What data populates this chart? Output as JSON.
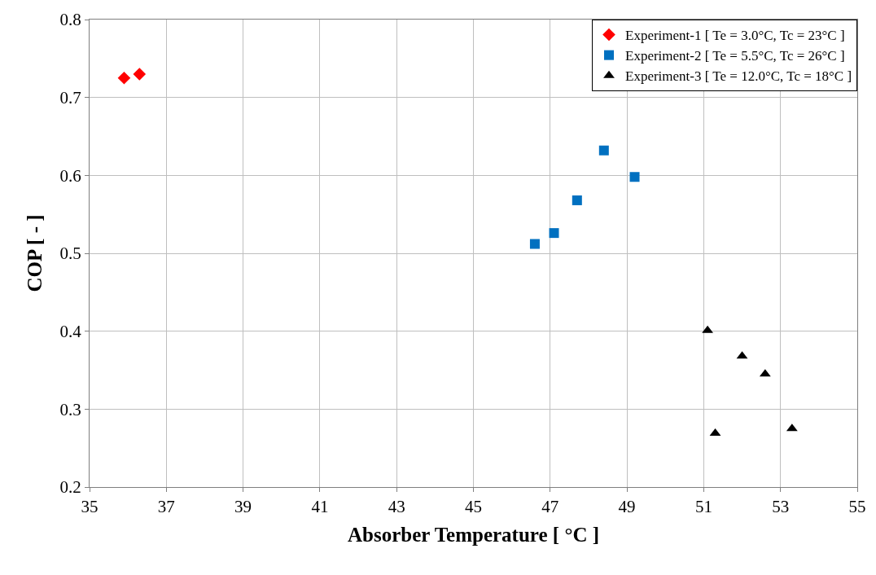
{
  "chart_data": {
    "type": "scatter",
    "xlabel": "Absorber Temperature [ °C ]",
    "ylabel": "COP [ - ]",
    "xlim": [
      35,
      55
    ],
    "xticks": [
      35,
      37,
      39,
      41,
      43,
      45,
      47,
      49,
      51,
      53,
      55
    ],
    "ylim": [
      0.2,
      0.8
    ],
    "yticks": [
      0.2,
      0.3,
      0.4,
      0.5,
      0.6,
      0.7,
      0.8
    ],
    "grid": true,
    "legend": "top right",
    "series": [
      {
        "name": "Experiment-1 [ Te = 3.0°C, Tc = 23°C ]",
        "color": "#ff0000",
        "marker": "diamond",
        "x": [
          35.9,
          36.3
        ],
        "values": [
          0.725,
          0.73
        ]
      },
      {
        "name": "Experiment-2 [ Te = 5.5°C, Tc = 26°C ]",
        "color": "#0070c0",
        "marker": "square",
        "x": [
          46.6,
          47.1,
          47.7,
          48.4,
          49.2
        ],
        "values": [
          0.512,
          0.526,
          0.568,
          0.632,
          0.598
        ]
      },
      {
        "name": "Experiment-3 [ Te = 12.0°C, Tc = 18°C ]",
        "color": "#000000",
        "marker": "triangle",
        "x": [
          51.1,
          52.0,
          52.6,
          51.3,
          53.3
        ],
        "values": [
          0.401,
          0.368,
          0.345,
          0.269,
          0.275
        ]
      }
    ]
  }
}
